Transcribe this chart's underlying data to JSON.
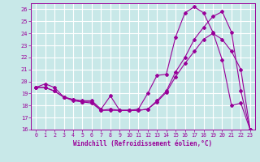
{
  "background_color": "#c8e8e8",
  "grid_color": "#ffffff",
  "line_color": "#990099",
  "xlabel": "Windchill (Refroidissement éolien,°C)",
  "xlim": [
    -0.5,
    23.5
  ],
  "ylim": [
    16,
    26.5
  ],
  "yticks": [
    16,
    17,
    18,
    19,
    20,
    21,
    22,
    23,
    24,
    25,
    26
  ],
  "xticks": [
    0,
    1,
    2,
    3,
    4,
    5,
    6,
    7,
    8,
    9,
    10,
    11,
    12,
    13,
    14,
    15,
    16,
    17,
    18,
    19,
    20,
    21,
    22,
    23
  ],
  "series": [
    {
      "x": [
        0,
        1,
        2,
        3,
        4,
        5,
        6,
        7,
        8,
        9,
        10,
        11,
        12,
        13,
        14,
        15,
        16,
        17,
        18,
        19,
        20,
        21,
        22,
        23
      ],
      "y": [
        19.5,
        19.8,
        19.5,
        18.7,
        18.5,
        18.4,
        18.4,
        17.7,
        18.8,
        17.6,
        17.6,
        17.7,
        19.0,
        20.5,
        20.6,
        23.7,
        25.7,
        26.2,
        25.7,
        24.1,
        21.8,
        18.0,
        18.2,
        16.0
      ]
    },
    {
      "x": [
        0,
        1,
        2,
        3,
        4,
        5,
        6,
        7,
        8,
        9,
        10,
        11,
        12,
        13,
        14,
        15,
        16,
        17,
        18,
        19,
        20,
        21,
        22,
        23
      ],
      "y": [
        19.5,
        19.5,
        19.2,
        18.7,
        18.5,
        18.3,
        18.3,
        17.6,
        17.6,
        17.6,
        17.6,
        17.6,
        17.7,
        18.3,
        19.1,
        20.4,
        21.5,
        22.5,
        23.5,
        24.0,
        23.5,
        22.5,
        21.0,
        16.0
      ]
    },
    {
      "x": [
        0,
        1,
        2,
        3,
        4,
        5,
        6,
        7,
        8,
        9,
        10,
        11,
        12,
        13,
        14,
        15,
        16,
        17,
        18,
        19,
        20,
        21,
        22,
        23
      ],
      "y": [
        19.5,
        19.5,
        19.2,
        18.7,
        18.4,
        18.3,
        18.2,
        17.6,
        17.7,
        17.6,
        17.6,
        17.6,
        17.7,
        18.4,
        19.2,
        20.8,
        22.0,
        23.5,
        24.5,
        25.4,
        25.8,
        24.1,
        19.2,
        16.0
      ]
    }
  ]
}
